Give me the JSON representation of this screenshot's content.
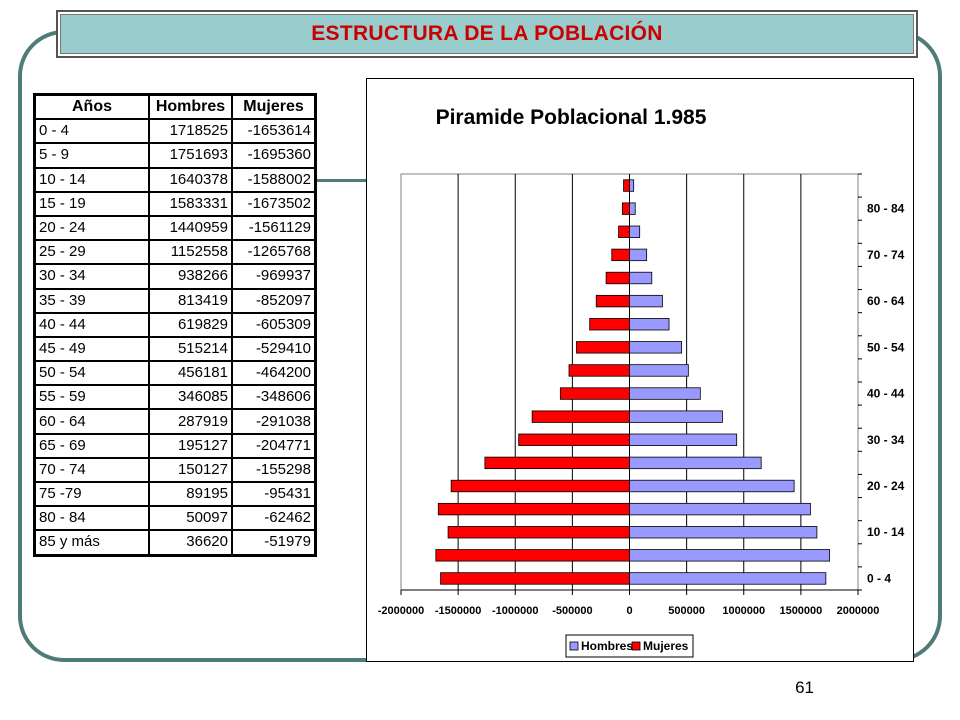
{
  "header": {
    "title": "ESTRUCTURA DE LA POBLACIÓN"
  },
  "table": {
    "headers": [
      "Años",
      "Hombres",
      "Mujeres"
    ],
    "rows": [
      [
        "0 - 4",
        "1718525",
        "-1653614"
      ],
      [
        "5 - 9",
        "1751693",
        "-1695360"
      ],
      [
        "10 - 14",
        "1640378",
        "-1588002"
      ],
      [
        "15 - 19",
        "1583331",
        "-1673502"
      ],
      [
        "20 - 24",
        "1440959",
        "-1561129"
      ],
      [
        "25 - 29",
        "1152558",
        "-1265768"
      ],
      [
        "30 - 34",
        "938266",
        "-969937"
      ],
      [
        "35 - 39",
        "813419",
        "-852097"
      ],
      [
        "40 - 44",
        "619829",
        "-605309"
      ],
      [
        "45 - 49",
        "515214",
        "-529410"
      ],
      [
        "50 - 54",
        "456181",
        "-464200"
      ],
      [
        "55 - 59",
        "346085",
        "-348606"
      ],
      [
        "60 - 64",
        "287919",
        "-291038"
      ],
      [
        "65 - 69",
        "195127",
        "-204771"
      ],
      [
        "70 - 74",
        "150127",
        "-155298"
      ],
      [
        "75 -79",
        "89195",
        "-95431"
      ],
      [
        "80 - 84",
        "50097",
        "-62462"
      ],
      [
        "85 y más",
        "36620",
        "-51979"
      ]
    ]
  },
  "chart_data": {
    "type": "bar",
    "orientation": "horizontal",
    "title": "Piramide Poblacional 1.985",
    "categories": [
      "0 - 4",
      "5 - 9",
      "10 - 14",
      "15 - 19",
      "20 - 24",
      "25 - 29",
      "30 - 34",
      "35 - 39",
      "40 - 44",
      "45 - 49",
      "50 - 54",
      "55 - 59",
      "60 - 64",
      "65 - 69",
      "70 - 74",
      "75 -79",
      "80 - 84",
      "85 y más"
    ],
    "category_tick_labels": [
      "0 - 4",
      "10 - 14",
      "20 - 24",
      "30 - 34",
      "40 - 44",
      "50 - 54",
      "60 - 64",
      "70 - 74",
      "80 - 84"
    ],
    "series": [
      {
        "name": "Hombres",
        "color": "#9999ff",
        "values": [
          1718525,
          1751693,
          1640378,
          1583331,
          1440959,
          1152558,
          938266,
          813419,
          619829,
          515214,
          456181,
          346085,
          287919,
          195127,
          150127,
          89195,
          50097,
          36620
        ]
      },
      {
        "name": "Mujeres",
        "color": "#ff0000",
        "values": [
          -1653614,
          -1695360,
          -1588002,
          -1673502,
          -1561129,
          -1265768,
          -969937,
          -852097,
          -605309,
          -529410,
          -464200,
          -348606,
          -291038,
          -204771,
          -155298,
          -95431,
          -62462,
          -51979
        ]
      }
    ],
    "xlim": [
      -2000000,
      2000000
    ],
    "x_ticks": [
      -2000000,
      -1500000,
      -1000000,
      -500000,
      0,
      500000,
      1000000,
      1500000,
      2000000
    ],
    "x_tick_labels": [
      "-2000000",
      "-1500000",
      "-1000000",
      "-500000",
      "0",
      "500000",
      "1000000",
      "1500000",
      "2000000"
    ],
    "grid": true,
    "legend": "bottom"
  },
  "footer": {
    "page_number": "61"
  }
}
